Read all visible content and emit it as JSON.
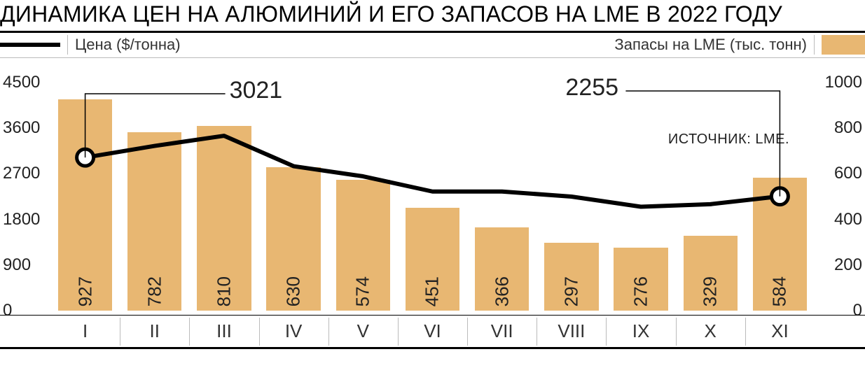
{
  "title": "ДИНАМИКА ЦЕН НА АЛЮМИНИЙ И ЕГО ЗАПАСОВ НА LME В 2022 ГОДУ",
  "legend": {
    "price_label": "Цена ($/тонна)",
    "stock_label": "Запасы на LME (тыс. тонн)"
  },
  "source_label": "ИСТОЧНИК: LME.",
  "callouts": {
    "first_price": "3021",
    "last_price": "2255"
  },
  "chart": {
    "type": "combo-bar-line",
    "background_color": "#ffffff",
    "grid_color": "#bbbbbb",
    "rule_color": "#000000",
    "bar_color": "#e8b772",
    "line_color": "#000000",
    "line_width": 6,
    "marker_radius": 12,
    "marker_stroke": "#000000",
    "marker_fill": "#ffffff",
    "font_family": "Arial",
    "title_fontsize": 32,
    "legend_fontsize": 22,
    "axis_fontsize": 24,
    "xaxis_fontsize": 26,
    "bar_label_fontsize": 26,
    "callout_fontsize": 34,
    "source_fontsize": 20,
    "left_axis": {
      "name": "price_usd_per_tonne",
      "min": 0,
      "max": 4500,
      "step": 900,
      "ticks": [
        "0",
        "900",
        "1800",
        "2700",
        "3600",
        "4500"
      ]
    },
    "right_axis": {
      "name": "stocks_k_tonnes",
      "min": 0,
      "max": 1000,
      "step": 200,
      "ticks": [
        "0",
        "200",
        "400",
        "600",
        "800",
        "1000"
      ]
    },
    "categories": [
      "I",
      "II",
      "III",
      "IV",
      "V",
      "VI",
      "VII",
      "VIII",
      "IX",
      "X",
      "XI"
    ],
    "bars_stocks": [
      927,
      782,
      810,
      630,
      574,
      451,
      366,
      297,
      276,
      329,
      584
    ],
    "line_price": [
      3021,
      3250,
      3450,
      2850,
      2650,
      2350,
      2350,
      2250,
      2050,
      2100,
      2255
    ],
    "bar_width_ratio": 0.78
  }
}
